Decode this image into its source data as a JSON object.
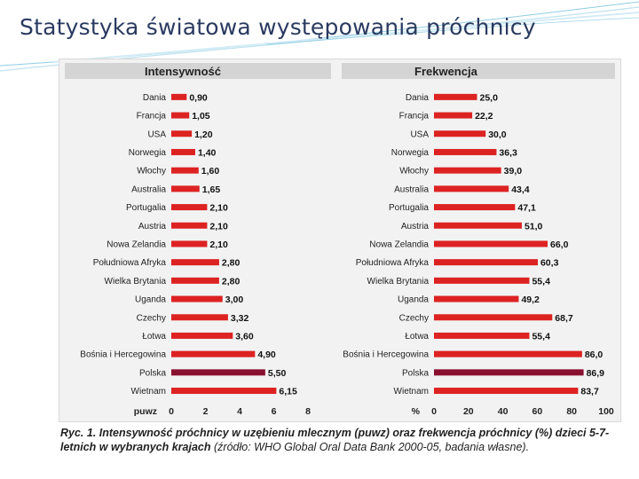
{
  "slide": {
    "title": "Statystyka światowa występowania próchnicy"
  },
  "caption": {
    "main": "Ryc. 1. Intensywność próchnicy w uzębieniu mlecznym (puwz) oraz frekwencja próchnicy (%) dzieci 5-7-letnich w wybranych krajach",
    "source": "(źródło: WHO Global Oral Data Bank 2000-05, badania własne)."
  },
  "colors": {
    "bar": "#dd2222",
    "highlight": "#8a1030",
    "panel": "#f2f2f2",
    "header": "#d4d4d4"
  },
  "chart_data": [
    {
      "type": "bar",
      "orientation": "horizontal",
      "title": "Intensywność",
      "xlabel": "puwz",
      "xlim": [
        0,
        8
      ],
      "xticks": [
        0,
        2,
        4,
        6,
        8
      ],
      "highlight": "Polska",
      "categories": [
        "Dania",
        "Francja",
        "USA",
        "Norwegia",
        "Włochy",
        "Australia",
        "Portugalia",
        "Austria",
        "Nowa Zelandia",
        "Południowa Afryka",
        "Wielka Brytania",
        "Uganda",
        "Czechy",
        "Łotwa",
        "Bośnia i Hercegowina",
        "Polska",
        "Wietnam"
      ],
      "values": [
        0.9,
        1.05,
        1.2,
        1.4,
        1.6,
        1.65,
        2.1,
        2.1,
        2.1,
        2.8,
        2.8,
        3.0,
        3.32,
        3.6,
        4.9,
        5.5,
        6.15
      ],
      "labels": [
        "0,90",
        "1,05",
        "1,20",
        "1,40",
        "1,60",
        "1,65",
        "2,10",
        "2,10",
        "2,10",
        "2,80",
        "2,80",
        "3,00",
        "3,32",
        "3,60",
        "4,90",
        "5,50",
        "6,15"
      ]
    },
    {
      "type": "bar",
      "orientation": "horizontal",
      "title": "Frekwencja",
      "xlabel": "%",
      "xlim": [
        0,
        100
      ],
      "xticks": [
        0,
        20,
        40,
        60,
        80,
        100
      ],
      "highlight": "Polska",
      "categories": [
        "Dania",
        "Francja",
        "USA",
        "Norwegia",
        "Włochy",
        "Australia",
        "Portugalia",
        "Austria",
        "Nowa Zelandia",
        "Południowa Afryka",
        "Wielka Brytania",
        "Uganda",
        "Czechy",
        "Łotwa",
        "Bośnia i Hercegowina",
        "Polska",
        "Wietnam"
      ],
      "values": [
        25.0,
        22.2,
        30.0,
        36.3,
        39.0,
        43.4,
        47.1,
        51.0,
        66.0,
        60.3,
        55.4,
        49.2,
        68.7,
        55.4,
        86.0,
        86.9,
        83.7
      ],
      "labels": [
        "25,0",
        "22,2",
        "30,0",
        "36,3",
        "39,0",
        "43,4",
        "47,1",
        "51,0",
        "66,0",
        "60,3",
        "55,4",
        "49,2",
        "68,7",
        "55,4",
        "86,0",
        "86,9",
        "83,7"
      ]
    }
  ]
}
